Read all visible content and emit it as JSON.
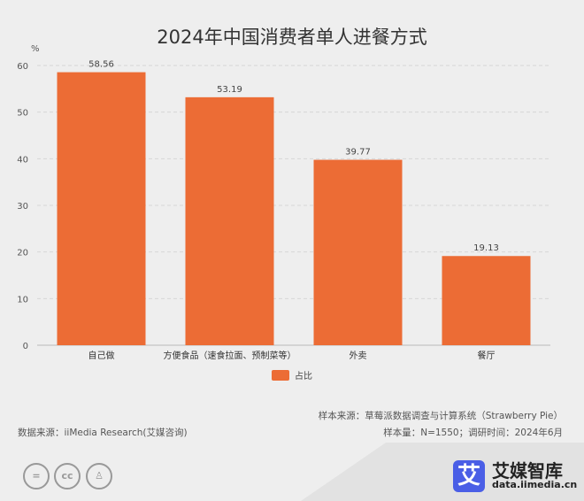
{
  "chart_data": {
    "type": "bar",
    "title": "2024年中国消费者单人进餐方式",
    "ylabel": "%",
    "categories": [
      "自己做",
      "方便食品（速食拉面、预制菜等）",
      "外卖",
      "餐厅"
    ],
    "series": [
      {
        "name": "占比",
        "values": [
          58.56,
          53.19,
          39.77,
          19.13
        ]
      }
    ],
    "data_labels": [
      "58.56",
      "53.19",
      "39.77",
      "19.13"
    ],
    "ylim": [
      0,
      60
    ],
    "yticks": [
      "0",
      "10",
      "20",
      "30",
      "40",
      "50",
      "60"
    ],
    "grid": true,
    "legend": "bottom",
    "bar_color": "#ec6c35"
  },
  "footer": {
    "data_source": "数据来源：iiMedia Research(艾媒咨询)",
    "sample_source": "样本来源：草莓派数据调查与计算系统（Strawberry Pie）",
    "sample_info": "样本量：N=1550；调研时间：2024年6月"
  },
  "brand": {
    "icon": "艾",
    "name": "艾媒智库",
    "url": "data.iimedia.cn"
  },
  "license_icons": [
    "cc-nd-icon",
    "cc-icon",
    "cc-by-icon"
  ]
}
